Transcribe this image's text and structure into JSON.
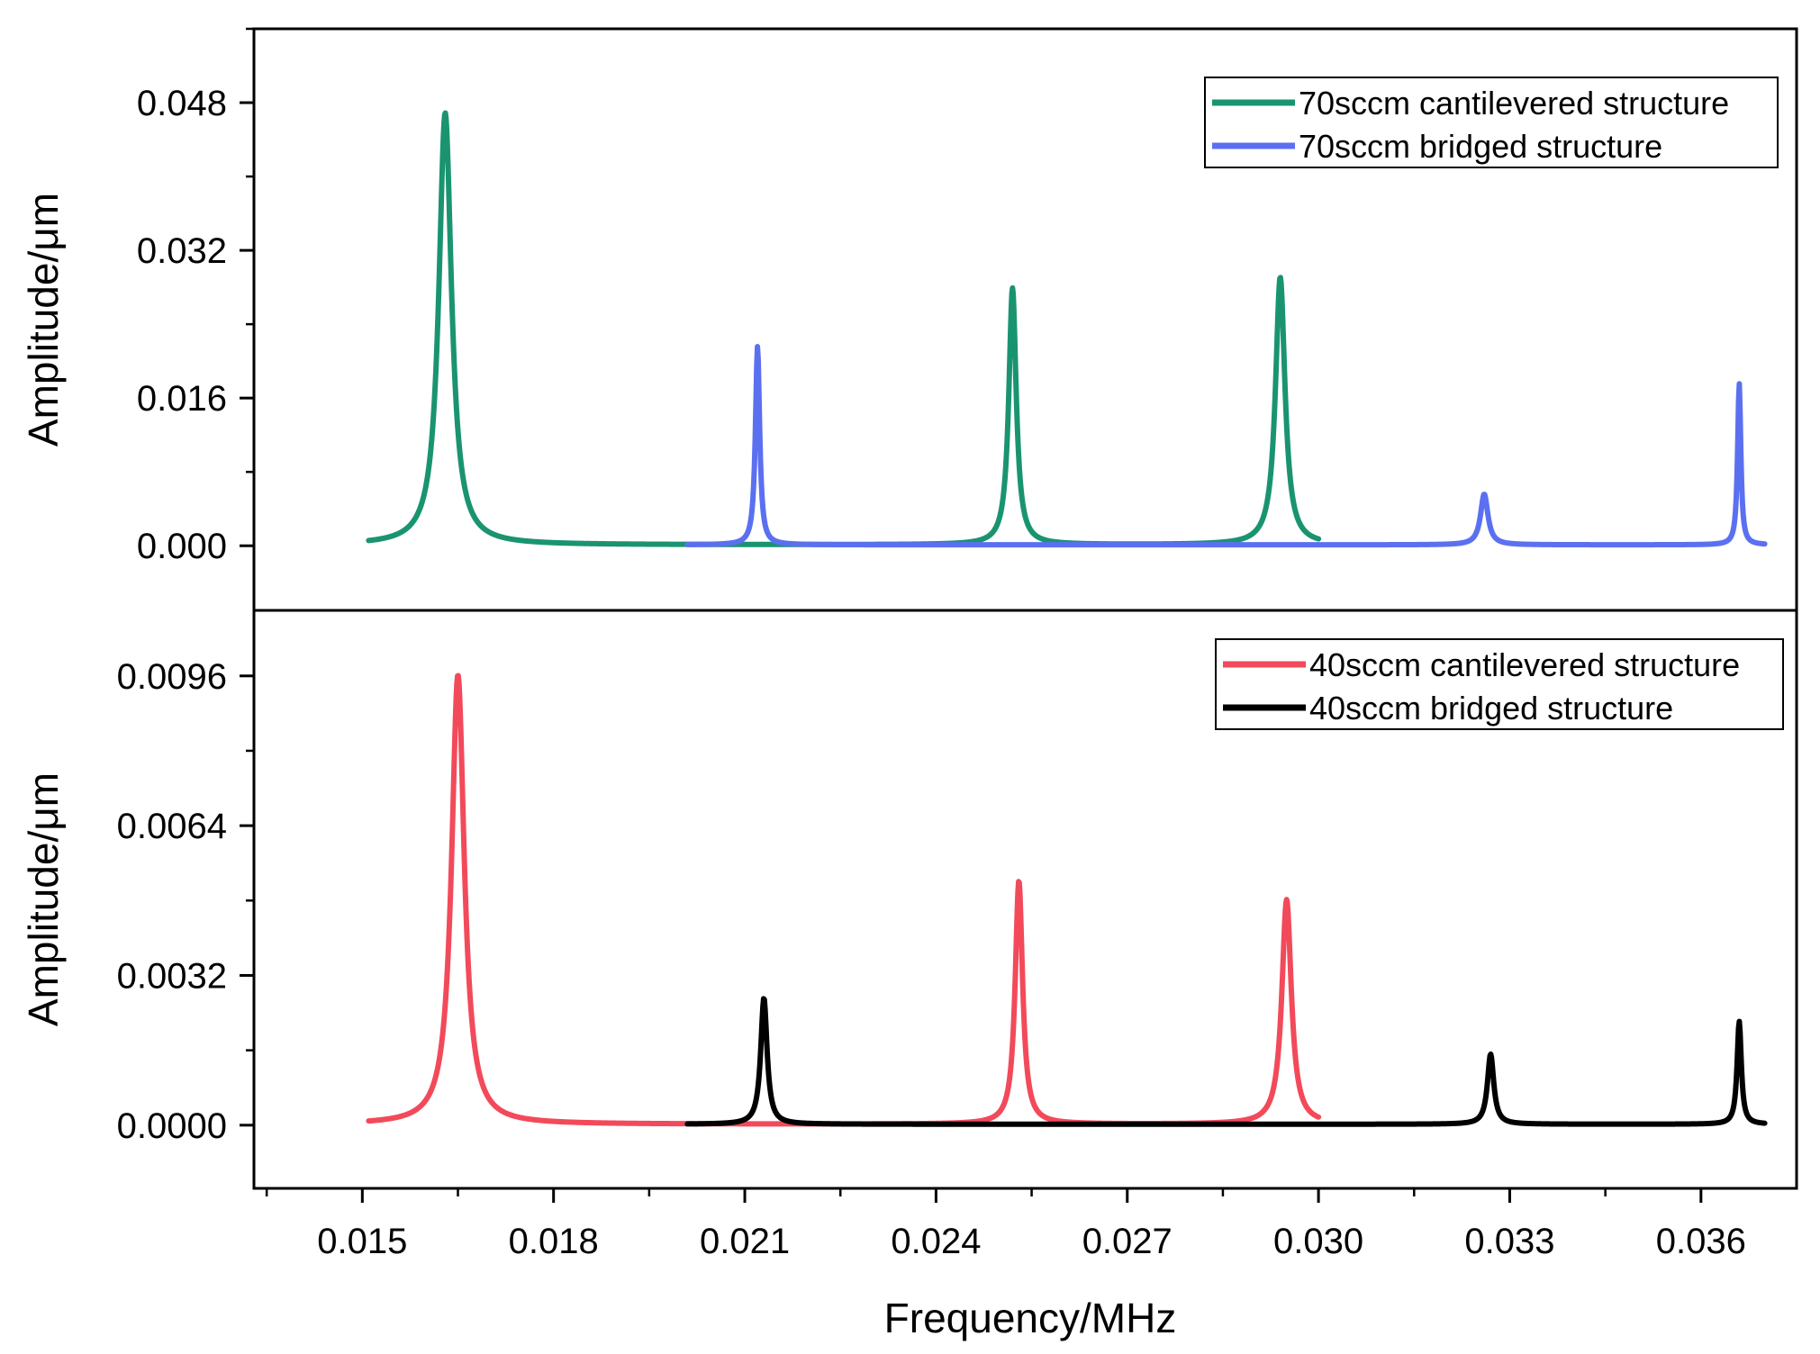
{
  "chart_data": {
    "type": "line",
    "xlabel": "Frequency/MHz",
    "xlim": [
      0.0133,
      0.0375
    ],
    "xticks": [
      0.015,
      0.018,
      0.021,
      0.024,
      0.027,
      0.03,
      0.033,
      0.036
    ],
    "xtick_labels": [
      "0.015",
      "0.018",
      "0.021",
      "0.024",
      "0.027",
      "0.030",
      "0.033",
      "0.036"
    ],
    "panels": [
      {
        "id": "top",
        "ylabel": "Amplitude/μm",
        "ylim": [
          -0.007,
          0.056
        ],
        "yticks": [
          0.0,
          0.016,
          0.032,
          0.048
        ],
        "ytick_labels": [
          "0.000",
          "0.016",
          "0.032",
          "0.048"
        ],
        "legend_position": "top-right",
        "series": [
          {
            "name": "70sccm cantilevered structure",
            "color": "#1a9470",
            "xrange": [
              0.0151,
              0.03
            ],
            "baseline": 0.0001,
            "peaks": [
              {
                "f": 0.0163,
                "amp": 0.0468,
                "gamma": 0.00012
              },
              {
                "f": 0.0252,
                "amp": 0.0278,
                "gamma": 7e-05
              },
              {
                "f": 0.0294,
                "amp": 0.029,
                "gamma": 9e-05
              }
            ]
          },
          {
            "name": "70sccm bridged structure",
            "color": "#5b70f0",
            "xrange": [
              0.0201,
              0.037
            ],
            "baseline": 0.0001,
            "peaks": [
              {
                "f": 0.0212,
                "amp": 0.0215,
                "gamma": 4e-05
              },
              {
                "f": 0.0326,
                "amp": 0.0055,
                "gamma": 7e-05
              },
              {
                "f": 0.0366,
                "amp": 0.0175,
                "gamma": 3e-05
              }
            ]
          }
        ]
      },
      {
        "id": "bottom",
        "ylabel": "Amplitude/μm",
        "ylim": [
          -0.00135,
          0.011
        ],
        "yticks": [
          0.0,
          0.0032,
          0.0064,
          0.0096
        ],
        "ytick_labels": [
          "0.0000",
          "0.0032",
          "0.0064",
          "0.0096"
        ],
        "legend_position": "top-right",
        "series": [
          {
            "name": "40sccm cantilevered structure",
            "color": "#f24a5a",
            "xrange": [
              0.0151,
              0.03
            ],
            "baseline": 2e-05,
            "peaks": [
              {
                "f": 0.0165,
                "amp": 0.0096,
                "gamma": 0.00012
              },
              {
                "f": 0.0253,
                "amp": 0.0052,
                "gamma": 7e-05
              },
              {
                "f": 0.0295,
                "amp": 0.0048,
                "gamma": 9e-05
              }
            ]
          },
          {
            "name": "40sccm bridged structure",
            "color": "#000000",
            "xrange": [
              0.0201,
              0.037
            ],
            "baseline": 2e-05,
            "peaks": [
              {
                "f": 0.0213,
                "amp": 0.0027,
                "gamma": 6e-05
              },
              {
                "f": 0.0327,
                "amp": 0.0015,
                "gamma": 6e-05
              },
              {
                "f": 0.0366,
                "amp": 0.0022,
                "gamma": 4e-05
              }
            ]
          }
        ]
      }
    ]
  }
}
